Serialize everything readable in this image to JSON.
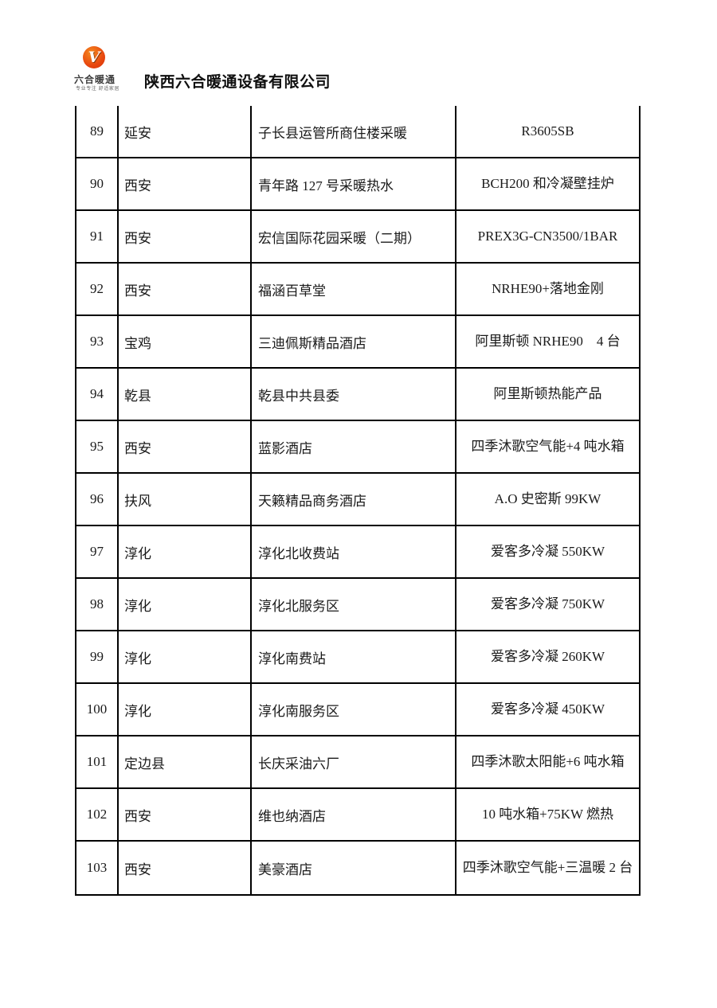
{
  "header": {
    "logo": {
      "mark": "V",
      "brand": "六合暖通",
      "tagline": "专业专注  舒适家居"
    },
    "company_name": "陕西六合暖通设备有限公司"
  },
  "colors": {
    "logo_orange": "#e8470f",
    "border": "#000000",
    "text": "#1a1a1a"
  },
  "table": {
    "rows": [
      {
        "no": "89",
        "city": "延安",
        "project": "子长县运管所商住楼采暖",
        "product": "R3605SB"
      },
      {
        "no": "90",
        "city": "西安",
        "project": "青年路 127 号采暖热水",
        "product": "BCH200 和冷凝壁挂炉"
      },
      {
        "no": "91",
        "city": "西安",
        "project": "宏信国际花园采暖（二期）",
        "product": "PREX3G-CN3500/1BAR"
      },
      {
        "no": "92",
        "city": "西安",
        "project": "福涵百草堂",
        "product": "NRHE90+落地金刚"
      },
      {
        "no": "93",
        "city": "宝鸡",
        "project": "三迪佩斯精品酒店",
        "product": "阿里斯顿 NRHE90    4 台"
      },
      {
        "no": "94",
        "city": "乾县",
        "project": "乾县中共县委",
        "product": "阿里斯顿热能产品"
      },
      {
        "no": "95",
        "city": "西安",
        "project": "蓝影酒店",
        "product": "四季沐歌空气能+4 吨水箱"
      },
      {
        "no": "96",
        "city": "扶风",
        "project": "天籁精品商务酒店",
        "product": "A.O 史密斯 99KW"
      },
      {
        "no": "97",
        "city": "淳化",
        "project": "淳化北收费站",
        "product": "爱客多冷凝 550KW"
      },
      {
        "no": "98",
        "city": "淳化",
        "project": "淳化北服务区",
        "product": "爱客多冷凝 750KW"
      },
      {
        "no": "99",
        "city": "淳化",
        "project": "淳化南费站",
        "product": "爱客多冷凝 260KW"
      },
      {
        "no": "100",
        "city": "淳化",
        "project": "淳化南服务区",
        "product": "爱客多冷凝 450KW"
      },
      {
        "no": "101",
        "city": "定边县",
        "project": "长庆采油六厂",
        "product": "四季沐歌太阳能+6 吨水箱"
      },
      {
        "no": "102",
        "city": "西安",
        "project": "维也纳酒店",
        "product": "10 吨水箱+75KW 燃热"
      },
      {
        "no": "103",
        "city": "西安",
        "project": "美豪酒店",
        "product": "四季沐歌空气能+三温暖 2 台"
      }
    ]
  }
}
